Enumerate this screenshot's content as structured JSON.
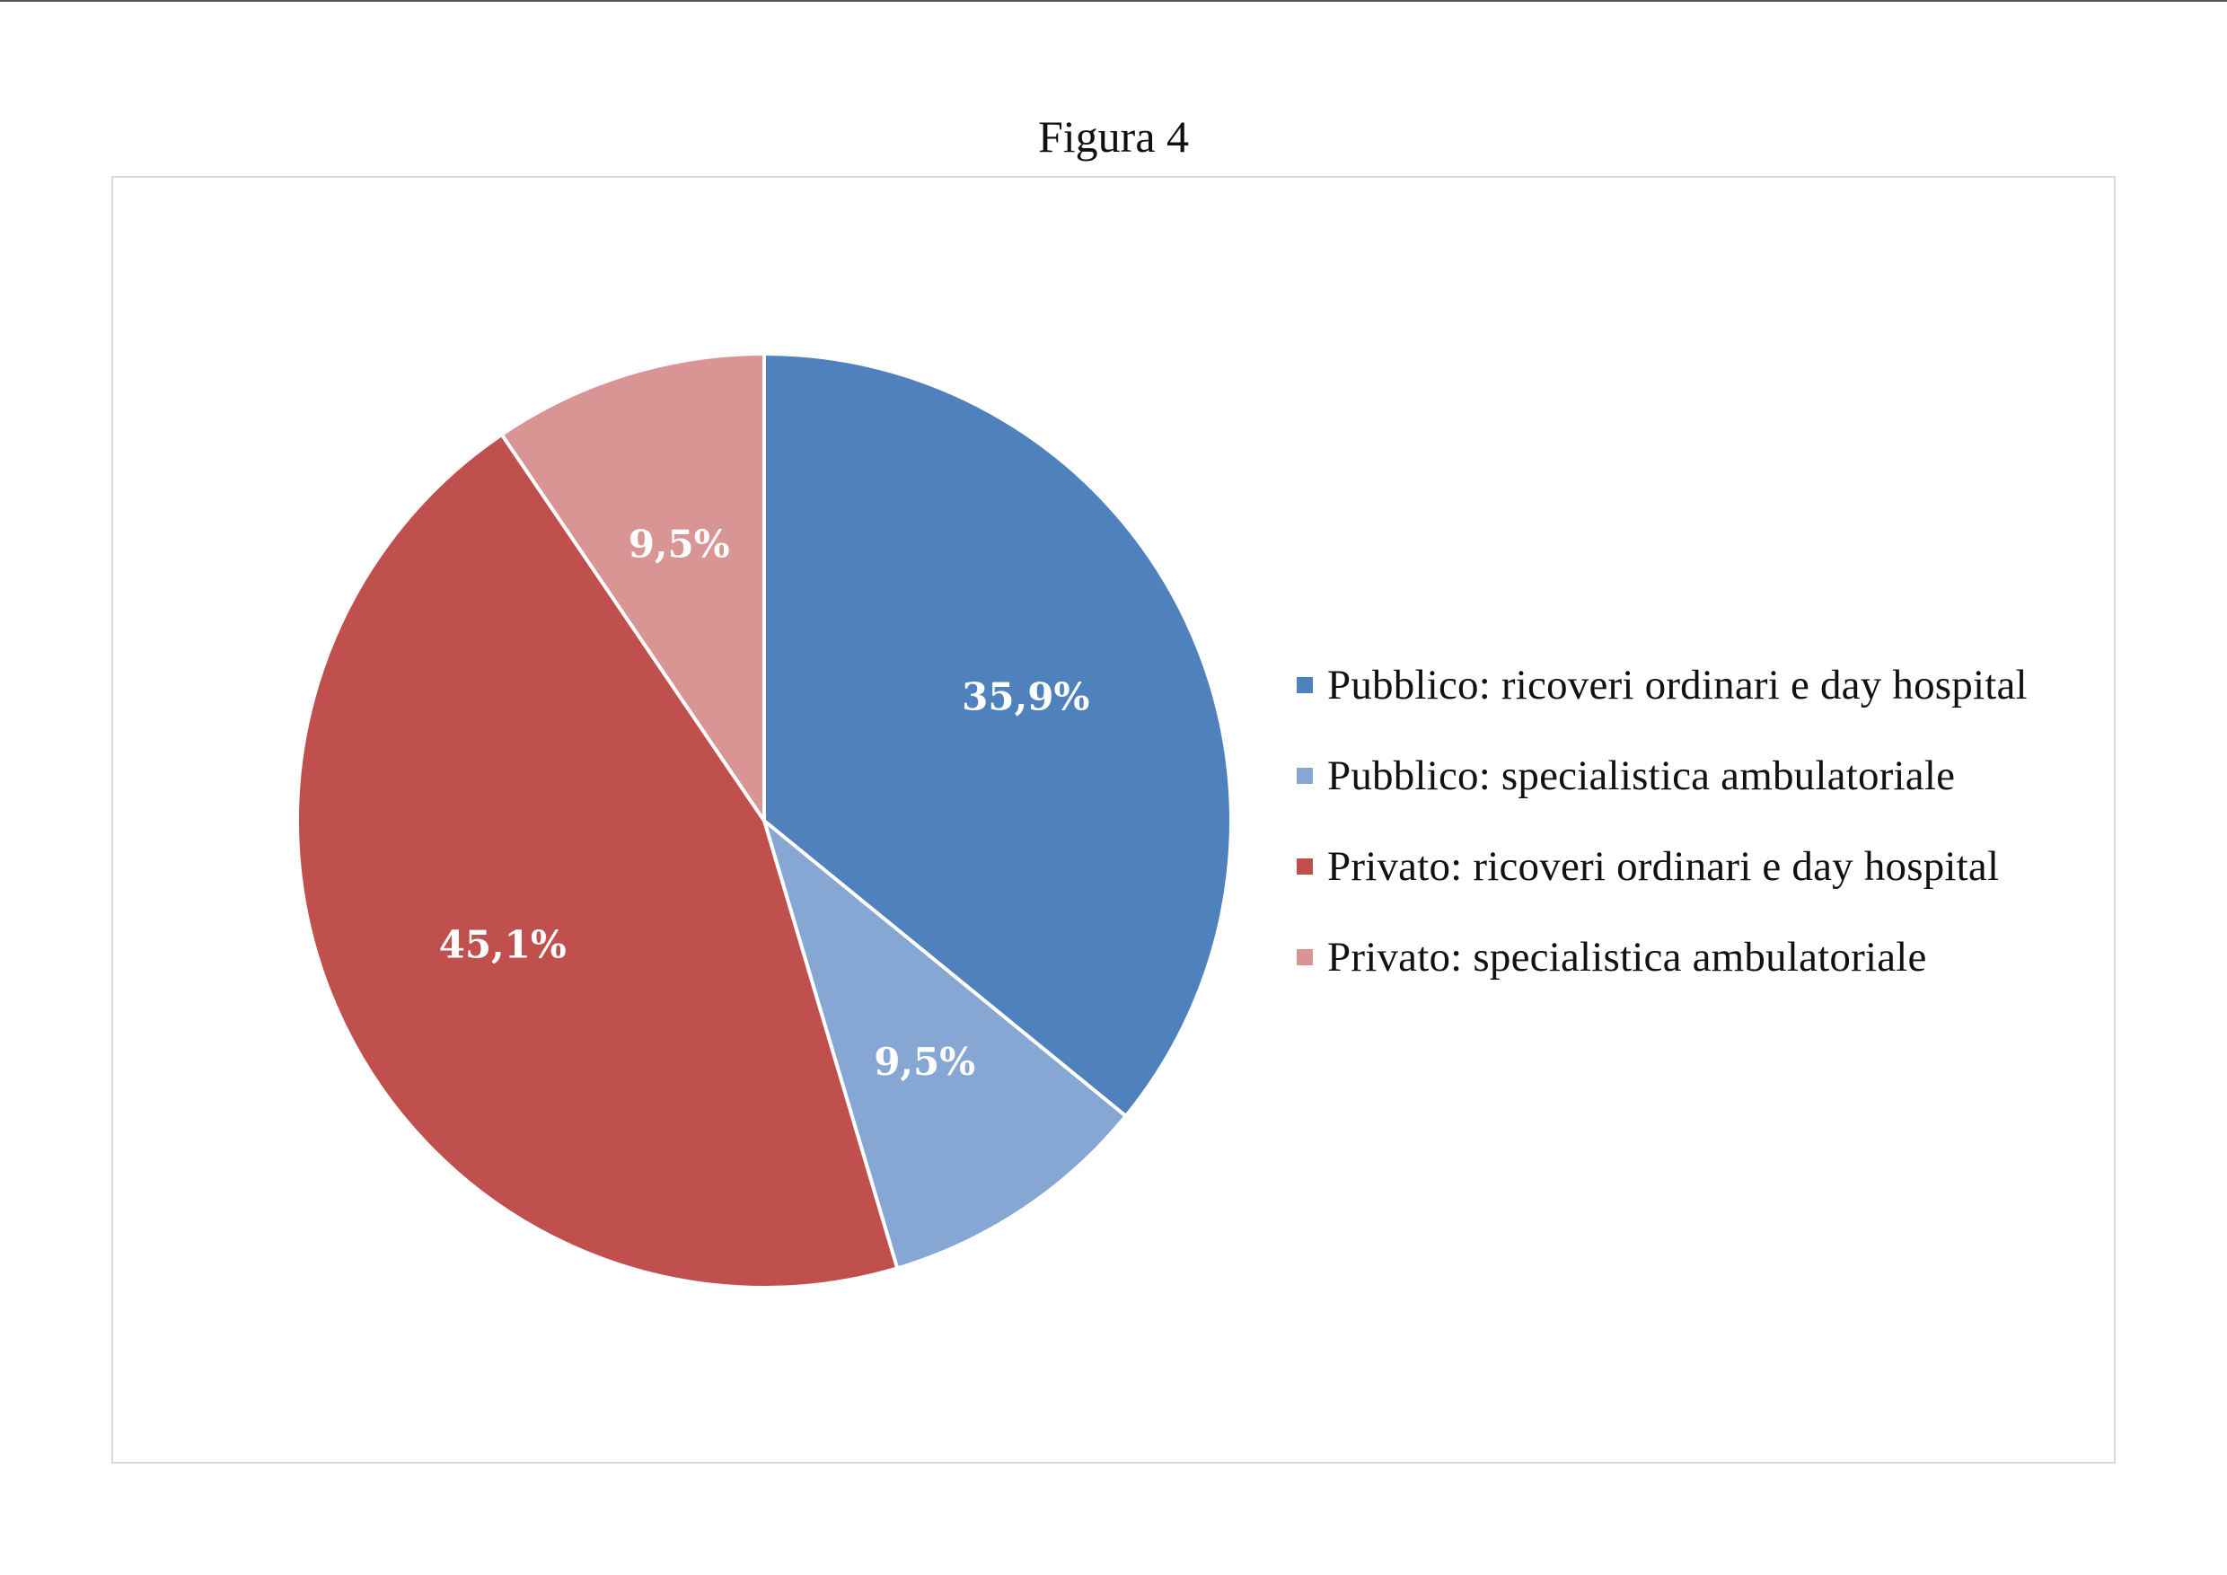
{
  "figure": {
    "caption": "Figura 4"
  },
  "chart_data": {
    "type": "pie",
    "title": "",
    "legend_position": "right",
    "start_angle_deg": 0,
    "direction": "clockwise",
    "slices": [
      {
        "name": "Pubblico: ricoveri ordinari e day hospital",
        "value": 35.9,
        "label": "35,9%",
        "color": "#4f81bd"
      },
      {
        "name": "Pubblico: specialistica ambulatoriale",
        "value": 9.5,
        "label": "9,5%",
        "color": "#86a7d3"
      },
      {
        "name": "Privato: ricoveri ordinari e day hospital",
        "value": 45.1,
        "label": "45,1%",
        "color": "#c0504d"
      },
      {
        "name": "Privato: specialistica ambulatoriale",
        "value": 9.5,
        "label": "9,5%",
        "color": "#d99594"
      }
    ]
  }
}
